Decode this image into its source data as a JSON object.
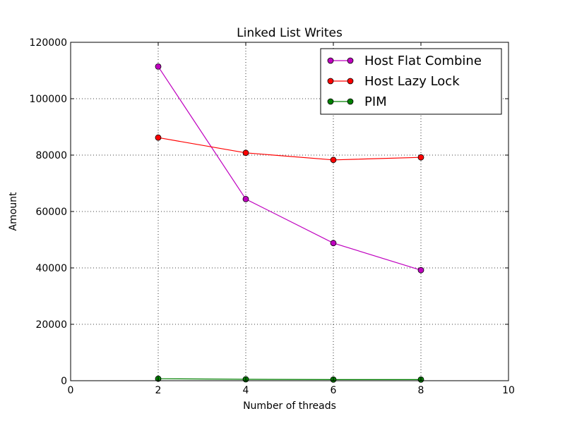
{
  "chart_data": {
    "type": "line",
    "title": "Linked List Writes",
    "xlabel": "Number of threads",
    "ylabel": "Amount",
    "x": [
      2,
      4,
      6,
      8
    ],
    "xlim": [
      0,
      10
    ],
    "ylim": [
      0,
      120000
    ],
    "xticks": [
      "0",
      "2",
      "4",
      "6",
      "8",
      "10"
    ],
    "yticks": [
      "0",
      "20000",
      "40000",
      "60000",
      "80000",
      "100000",
      "120000"
    ],
    "grid": true,
    "legend_position": "top-right",
    "series": [
      {
        "name": "Host Flat Combine",
        "color": "#bf00bf",
        "values": [
          111400,
          64400,
          48800,
          39200
        ]
      },
      {
        "name": "Host Lazy Lock",
        "color": "#ff0000",
        "values": [
          86200,
          80800,
          78300,
          79200
        ]
      },
      {
        "name": "PIM",
        "color": "#008000",
        "values": [
          700,
          500,
          400,
          400
        ]
      }
    ]
  }
}
